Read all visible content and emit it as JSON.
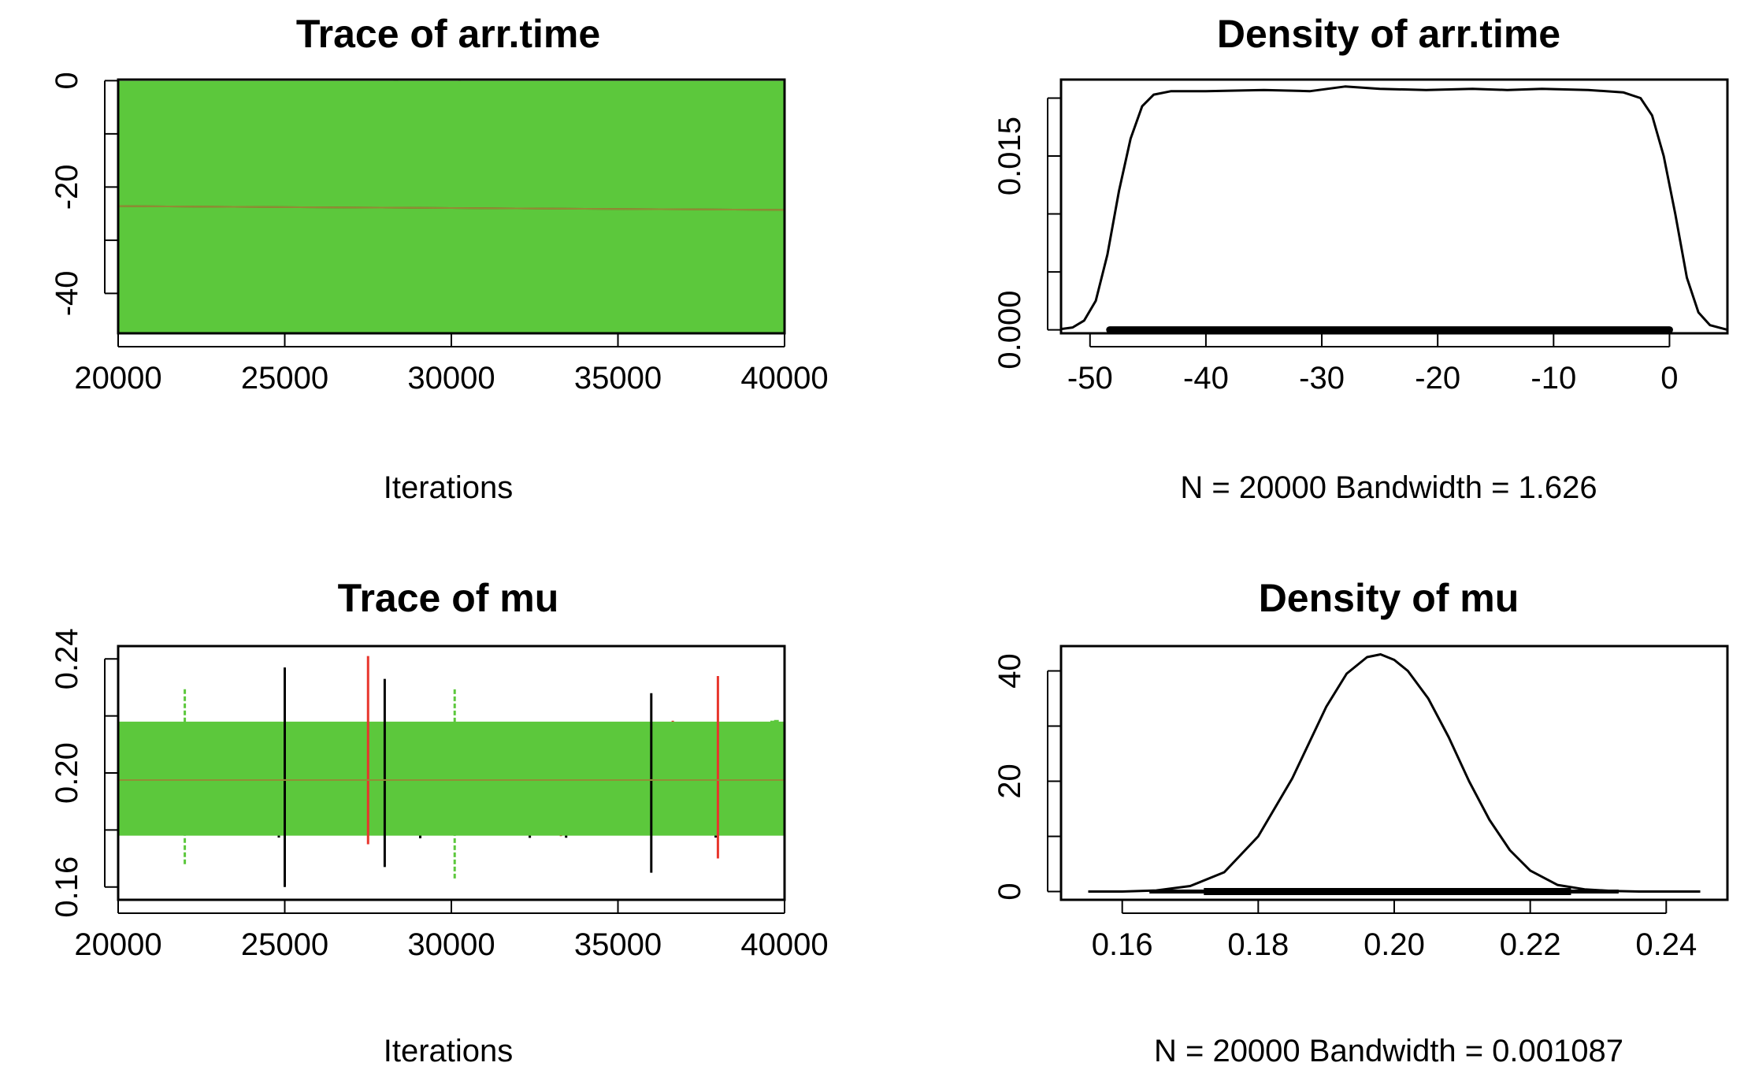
{
  "colors": {
    "chain1": "#000000",
    "chain2": "#e8352c",
    "chain3": "#5cc83c"
  },
  "chart_data": [
    {
      "type": "line",
      "title": "Trace of arr.time",
      "xlabel": "Iterations",
      "ylabel": "",
      "xlim": [
        20000,
        40000
      ],
      "ylim": [
        -47.5,
        0.2
      ],
      "xticks": [
        20000,
        25000,
        30000,
        35000,
        40000
      ],
      "yticks": [
        0,
        -20,
        -40
      ],
      "yticks_minor": [
        -10,
        -30
      ],
      "band": {
        "min": -47.5,
        "max": -0.05
      },
      "series": [
        {
          "color": "chain1",
          "mean_start": -23.6,
          "mean_end": -24.3
        },
        {
          "color": "chain2",
          "mean_start": -23.6,
          "mean_end": -24.3
        },
        {
          "color": "chain3",
          "mean_start": -23.6,
          "mean_end": -24.3
        }
      ]
    },
    {
      "type": "area",
      "title": "Density of arr.time",
      "xlabel": "N = 20000   Bandwidth = 1.626",
      "ylabel": "",
      "xlim": [
        -52.5,
        5
      ],
      "ylim": [
        -0.0003,
        0.0216
      ],
      "xticks": [
        -50,
        -40,
        -30,
        -20,
        -10,
        0
      ],
      "yticks": [
        0.0,
        0.015
      ],
      "yticks_labels": [
        "0.000",
        "0.015"
      ],
      "yticks_minor": [
        0.005,
        0.01,
        0.02
      ],
      "rug": [
        -48.3,
        0
      ],
      "x": [
        -53,
        -51.5,
        -50.5,
        -49.5,
        -48.5,
        -47.5,
        -46.5,
        -45.5,
        -44.5,
        -43,
        -40,
        -35,
        -31,
        -28,
        -25,
        -21,
        -17,
        -14,
        -11,
        -7,
        -4,
        -2.5,
        -1.5,
        -0.5,
        0.5,
        1.5,
        2.5,
        3.5,
        5
      ],
      "y": [
        0.0,
        0.0002,
        0.0008,
        0.0025,
        0.0065,
        0.012,
        0.0165,
        0.0193,
        0.0203,
        0.0206,
        0.0206,
        0.0207,
        0.0206,
        0.021,
        0.0208,
        0.0207,
        0.0208,
        0.0207,
        0.0208,
        0.0207,
        0.0205,
        0.02,
        0.0185,
        0.015,
        0.01,
        0.0045,
        0.0015,
        0.0004,
        0.0
      ]
    },
    {
      "type": "line",
      "title": "Trace of mu",
      "xlabel": "Iterations",
      "ylabel": "",
      "xlim": [
        20000,
        40000
      ],
      "ylim": [
        0.1555,
        0.2445
      ],
      "xticks": [
        20000,
        25000,
        30000,
        35000,
        40000
      ],
      "yticks": [
        0.16,
        0.2,
        0.24
      ],
      "yticks_labels": [
        "0.16",
        "0.20",
        "0.24"
      ],
      "yticks_minor": [
        0.18,
        0.22
      ],
      "band": {
        "min": 0.174,
        "max": 0.222
      },
      "spikes": [
        {
          "x": 25000,
          "min": 0.16,
          "max": 0.237
        },
        {
          "x": 27500,
          "min": 0.175,
          "max": 0.241
        },
        {
          "x": 30100,
          "min": 0.163,
          "max": 0.23
        },
        {
          "x": 36000,
          "min": 0.165,
          "max": 0.228
        },
        {
          "x": 38000,
          "min": 0.17,
          "max": 0.234
        },
        {
          "x": 22000,
          "min": 0.168,
          "max": 0.23
        },
        {
          "x": 28000,
          "min": 0.167,
          "max": 0.233
        }
      ],
      "series": [
        {
          "color": "chain1",
          "mean_start": 0.1975,
          "mean_end": 0.1975
        },
        {
          "color": "chain2",
          "mean_start": 0.1975,
          "mean_end": 0.1975
        },
        {
          "color": "chain3",
          "mean_start": 0.1975,
          "mean_end": 0.1975
        }
      ]
    },
    {
      "type": "area",
      "title": "Density of mu",
      "xlabel": "N = 20000   Bandwidth = 0.001087",
      "ylabel": "",
      "xlim": [
        0.151,
        0.249
      ],
      "ylim": [
        -1.5,
        44.5
      ],
      "xticks": [
        0.16,
        0.18,
        0.2,
        0.22,
        0.24
      ],
      "xticks_labels": [
        "0.16",
        "0.18",
        "0.20",
        "0.22",
        "0.24"
      ],
      "yticks": [
        0,
        20,
        40
      ],
      "yticks_minor": [
        10,
        30
      ],
      "rug": [
        0.164,
        0.233
      ],
      "rug_dense": [
        0.172,
        0.226
      ],
      "x": [
        0.155,
        0.16,
        0.165,
        0.17,
        0.175,
        0.18,
        0.185,
        0.19,
        0.193,
        0.196,
        0.198,
        0.2,
        0.202,
        0.205,
        0.208,
        0.211,
        0.214,
        0.217,
        0.22,
        0.224,
        0.228,
        0.232,
        0.236,
        0.24,
        0.245
      ],
      "y": [
        0.0,
        0.0,
        0.2,
        1.0,
        3.5,
        10.0,
        20.5,
        33.5,
        39.5,
        42.5,
        43.0,
        42.0,
        40.0,
        35.0,
        28.0,
        20.0,
        13.0,
        7.5,
        3.8,
        1.2,
        0.4,
        0.1,
        0.0,
        0.0,
        0.0
      ]
    }
  ]
}
